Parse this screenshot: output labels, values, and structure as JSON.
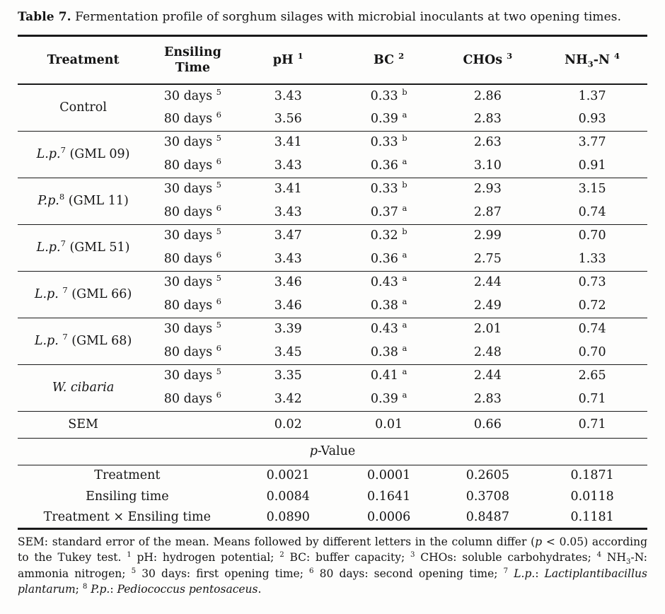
{
  "theme": {
    "text": "#151515",
    "background": "#fdfdfc",
    "rule": "#1a1a1a"
  },
  "caption": {
    "label": "Table 7.",
    "text": " Fermentation profile of sorghum silages with microbial inoculants at two opening times."
  },
  "table": {
    "columns": [
      {
        "id": "treatment",
        "parts": [
          {
            "t": "Treatment"
          }
        ]
      },
      {
        "id": "ensiling-time",
        "parts": [
          {
            "t": "Ensiling Time"
          }
        ]
      },
      {
        "id": "ph",
        "parts": [
          {
            "t": "pH "
          },
          {
            "t": "1",
            "style": "sup"
          }
        ]
      },
      {
        "id": "bc",
        "parts": [
          {
            "t": "BC "
          },
          {
            "t": "2",
            "style": "sup"
          }
        ]
      },
      {
        "id": "chos",
        "parts": [
          {
            "t": "CHOs "
          },
          {
            "t": "3",
            "style": "sup"
          }
        ]
      },
      {
        "id": "nh3n",
        "parts": [
          {
            "t": "NH"
          },
          {
            "t": "3",
            "style": "sub"
          },
          {
            "t": "-N "
          },
          {
            "t": "4",
            "style": "sup"
          }
        ]
      }
    ],
    "groups": [
      {
        "id": "control",
        "name": [
          {
            "t": "Control"
          }
        ],
        "rows": [
          {
            "time": "30 days",
            "time_sup": "5",
            "ph": "3.43",
            "bc": "0.33",
            "bc_sup": "b",
            "chos": "2.86",
            "nh3n": "1.37"
          },
          {
            "time": "80 days",
            "time_sup": "6",
            "ph": "3.56",
            "bc": "0.39",
            "bc_sup": "a",
            "chos": "2.83",
            "nh3n": "0.93"
          }
        ]
      },
      {
        "id": "lp-gml09",
        "name": [
          {
            "t": "L.p.",
            "style": "italic"
          },
          {
            "t": "7",
            "style": "sup"
          },
          {
            "t": " (GML 09)"
          }
        ],
        "rows": [
          {
            "time": "30 days",
            "time_sup": "5",
            "ph": "3.41",
            "bc": "0.33",
            "bc_sup": "b",
            "chos": "2.63",
            "nh3n": "3.77"
          },
          {
            "time": "80 days",
            "time_sup": "6",
            "ph": "3.43",
            "bc": "0.36",
            "bc_sup": "a",
            "chos": "3.10",
            "nh3n": "0.91"
          }
        ]
      },
      {
        "id": "pp-gml11",
        "name": [
          {
            "t": "P.p.",
            "style": "italic"
          },
          {
            "t": "8",
            "style": "sup"
          },
          {
            "t": " (GML 11)"
          }
        ],
        "rows": [
          {
            "time": "30 days",
            "time_sup": "5",
            "ph": "3.41",
            "bc": "0.33",
            "bc_sup": "b",
            "chos": "2.93",
            "nh3n": "3.15"
          },
          {
            "time": "80 days",
            "time_sup": "6",
            "ph": "3.43",
            "bc": "0.37",
            "bc_sup": "a",
            "chos": "2.87",
            "nh3n": "0.74"
          }
        ]
      },
      {
        "id": "lp-gml51",
        "name": [
          {
            "t": "L.p.",
            "style": "italic"
          },
          {
            "t": "7",
            "style": "sup"
          },
          {
            "t": " (GML 51)"
          }
        ],
        "rows": [
          {
            "time": "30 days",
            "time_sup": "5",
            "ph": "3.47",
            "bc": "0.32",
            "bc_sup": "b",
            "chos": "2.99",
            "nh3n": "0.70"
          },
          {
            "time": "80 days",
            "time_sup": "6",
            "ph": "3.43",
            "bc": "0.36",
            "bc_sup": "a",
            "chos": "2.75",
            "nh3n": "1.33"
          }
        ]
      },
      {
        "id": "lp-gml66",
        "name": [
          {
            "t": "L.p. ",
            "style": "italic"
          },
          {
            "t": "7",
            "style": "sup"
          },
          {
            "t": " (GML 66)"
          }
        ],
        "rows": [
          {
            "time": "30 days",
            "time_sup": "5",
            "ph": "3.46",
            "bc": "0.43",
            "bc_sup": "a",
            "chos": "2.44",
            "nh3n": "0.73"
          },
          {
            "time": "80 days",
            "time_sup": "6",
            "ph": "3.46",
            "bc": "0.38",
            "bc_sup": "a",
            "chos": "2.49",
            "nh3n": "0.72"
          }
        ]
      },
      {
        "id": "lp-gml68",
        "name": [
          {
            "t": "L.p. ",
            "style": "italic"
          },
          {
            "t": "7",
            "style": "sup"
          },
          {
            "t": " (GML 68)"
          }
        ],
        "rows": [
          {
            "time": "30 days",
            "time_sup": "5",
            "ph": "3.39",
            "bc": "0.43",
            "bc_sup": "a",
            "chos": "2.01",
            "nh3n": "0.74"
          },
          {
            "time": "80 days",
            "time_sup": "6",
            "ph": "3.45",
            "bc": "0.38",
            "bc_sup": "a",
            "chos": "2.48",
            "nh3n": "0.70"
          }
        ]
      },
      {
        "id": "w-cibaria",
        "name": [
          {
            "t": "W. cibaria",
            "style": "italic"
          }
        ],
        "rows": [
          {
            "time": "30 days",
            "time_sup": "5",
            "ph": "3.35",
            "bc": "0.41",
            "bc_sup": "a",
            "chos": "2.44",
            "nh3n": "2.65"
          },
          {
            "time": "80 days",
            "time_sup": "6",
            "ph": "3.42",
            "bc": "0.39",
            "bc_sup": "a",
            "chos": "2.83",
            "nh3n": "0.71"
          }
        ]
      }
    ],
    "sem_row": {
      "label": "SEM",
      "ph": "0.02",
      "bc": "0.01",
      "chos": "0.66",
      "nh3n": "0.71"
    },
    "p_value_section": {
      "header_parts": [
        {
          "t": "p",
          "style": "italic"
        },
        {
          "t": "-Value"
        }
      ],
      "rows": [
        {
          "label": "Treatment",
          "values": [
            "0.0021",
            "0.0001",
            "0.2605",
            "0.1871"
          ]
        },
        {
          "label": "Ensiling time",
          "values": [
            "0.0084",
            "0.1641",
            "0.3708",
            "0.0118"
          ]
        },
        {
          "label": "Treatment × Ensiling time",
          "values": [
            "0.0890",
            "0.0006",
            "0.8487",
            "0.1181"
          ]
        }
      ]
    }
  },
  "footnote": {
    "parts": [
      {
        "t": "SEM: standard error of the mean. Means followed by different letters in the column differ ("
      },
      {
        "t": "p",
        "style": "italic"
      },
      {
        "t": " < 0.05) according to the Tukey test. "
      },
      {
        "t": "1",
        "style": "sup"
      },
      {
        "t": " pH: hydrogen potential; "
      },
      {
        "t": "2",
        "style": "sup"
      },
      {
        "t": " BC: buffer capacity; "
      },
      {
        "t": "3",
        "style": "sup"
      },
      {
        "t": " CHOs: soluble carbohydrates; "
      },
      {
        "t": "4",
        "style": "sup"
      },
      {
        "t": " NH"
      },
      {
        "t": "3",
        "style": "sub"
      },
      {
        "t": "-N: ammonia nitrogen; "
      },
      {
        "t": "5",
        "style": "sup"
      },
      {
        "t": " 30 days: first opening time; "
      },
      {
        "t": "6",
        "style": "sup"
      },
      {
        "t": " 80 days: second opening time; "
      },
      {
        "t": "7",
        "style": "sup"
      },
      {
        "t": " "
      },
      {
        "t": "L.p.",
        "style": "italic"
      },
      {
        "t": ": "
      },
      {
        "t": "Lactiplantibacillus plantarum",
        "style": "italic"
      },
      {
        "t": "; "
      },
      {
        "t": "8",
        "style": "sup"
      },
      {
        "t": " "
      },
      {
        "t": "P.p.",
        "style": "italic"
      },
      {
        "t": ": "
      },
      {
        "t": "Pediococcus pentosaceus",
        "style": "italic"
      },
      {
        "t": "."
      }
    ]
  }
}
